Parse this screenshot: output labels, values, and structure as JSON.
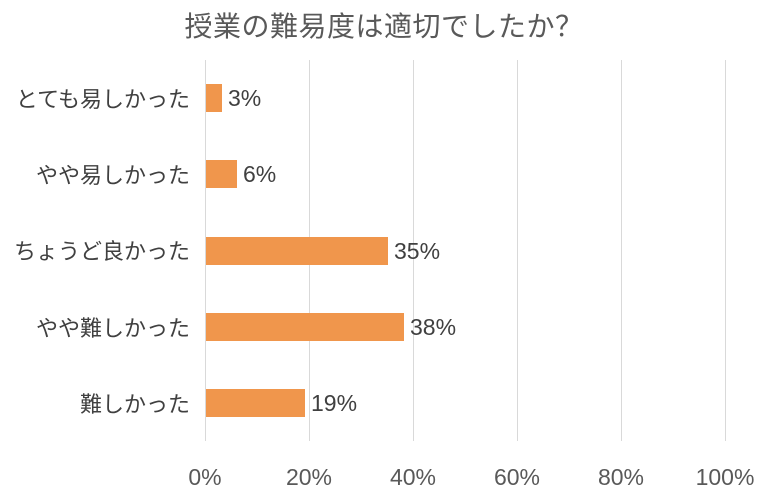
{
  "chart_data": {
    "type": "bar",
    "orientation": "horizontal",
    "title": "授業の難易度は適切でしたか？",
    "categories": [
      "とても易しかった",
      "やや易しかった",
      "ちょうど良かった",
      "やや難しかった",
      "難しかった"
    ],
    "values": [
      3,
      6,
      35,
      38,
      19
    ],
    "value_labels": [
      "3%",
      "6%",
      "35%",
      "38%",
      "19%"
    ],
    "x_tick_labels": [
      "0%",
      "20%",
      "40%",
      "60%",
      "80%",
      "100%"
    ],
    "x_tick_values": [
      0,
      20,
      40,
      60,
      80,
      100
    ],
    "xlim": [
      0,
      100
    ],
    "grid": "vertical-only",
    "legend": false,
    "colors": {
      "bar": "#f0964c",
      "gridline": "#d9d9d9",
      "title": "#595959",
      "axis_labels": "#595959",
      "data_labels": "#404040",
      "background": "#ffffff"
    }
  }
}
